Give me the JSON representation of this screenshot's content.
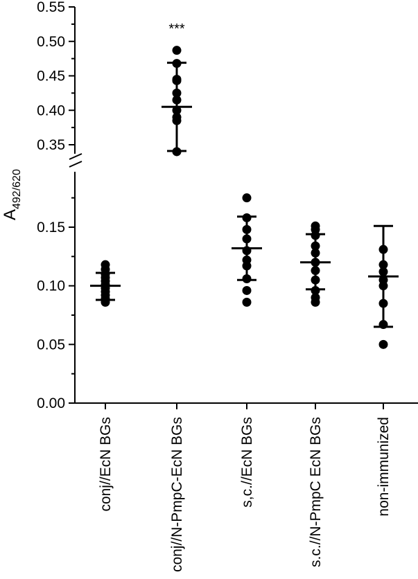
{
  "chart_data": {
    "type": "scatter",
    "ylabel": {
      "main": "A",
      "subscript": "492/620"
    },
    "y_axis_break": true,
    "ylim_lower": [
      0.0,
      0.18
    ],
    "ylim_upper": [
      0.33,
      0.55
    ],
    "yticks_lower": [
      "0.00",
      "0.05",
      "0.10",
      "0.15"
    ],
    "yticks_upper": [
      "0.35",
      "0.40",
      "0.45",
      "0.50",
      "0.55"
    ],
    "categories": [
      "conj//EcN BGs",
      "conj//N-PmpC-EcN BGs",
      "s,c.//EcN BGs",
      "s.c.//N-PmpC EcN BGs",
      "non-immunized"
    ],
    "groups": [
      {
        "mean": 0.1,
        "sd_low": 0.088,
        "sd_high": 0.111,
        "points": [
          0.086,
          0.089,
          0.092,
          0.095,
          0.098,
          0.101,
          0.104,
          0.107,
          0.11,
          0.114,
          0.118
        ]
      },
      {
        "mean": 0.405,
        "sd_low": 0.341,
        "sd_high": 0.469,
        "annotation": "***",
        "points": [
          0.34,
          0.385,
          0.39,
          0.4,
          0.415,
          0.425,
          0.443,
          0.445,
          0.468,
          0.487
        ]
      },
      {
        "mean": 0.132,
        "sd_low": 0.105,
        "sd_high": 0.159,
        "points": [
          0.086,
          0.096,
          0.106,
          0.117,
          0.122,
          0.13,
          0.14,
          0.148,
          0.158,
          0.175
        ]
      },
      {
        "mean": 0.12,
        "sd_low": 0.097,
        "sd_high": 0.144,
        "points": [
          0.086,
          0.09,
          0.096,
          0.105,
          0.113,
          0.12,
          0.128,
          0.134,
          0.143,
          0.148,
          0.151
        ]
      },
      {
        "mean": 0.108,
        "sd_low": 0.065,
        "sd_high": 0.151,
        "points": [
          0.05,
          0.067,
          0.085,
          0.1,
          0.105,
          0.112,
          0.118,
          0.131
        ]
      }
    ]
  }
}
